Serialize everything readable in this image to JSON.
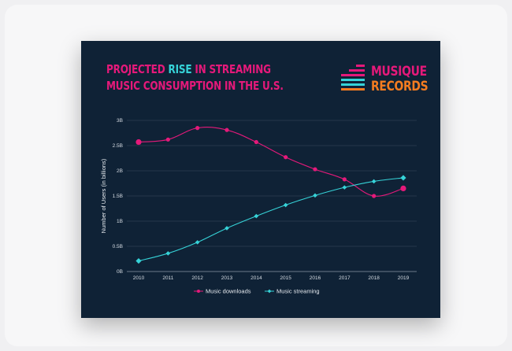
{
  "header": {
    "title_part1": "PROJECTED ",
    "title_highlight": "RISE",
    "title_part2": " IN STREAMING",
    "title_line2": "MUSIC CONSUMPTION IN THE U.S."
  },
  "logo": {
    "line1": "MUSIQUE",
    "line2": "RECORDS",
    "icon": "equalizer-bars-icon",
    "colors": [
      "#e5197a",
      "#36d3d8",
      "#f47c20"
    ]
  },
  "colors": {
    "background": "#0f2236",
    "downloads": "#e5197a",
    "streaming": "#36d3d8"
  },
  "chart_data": {
    "type": "line",
    "x": [
      "2010",
      "2011",
      "2012",
      "2013",
      "2014",
      "2015",
      "2016",
      "2017",
      "2018",
      "2019"
    ],
    "ylabel": "Number of Users (in billions)",
    "ylim": [
      0,
      3
    ],
    "yticks": [
      0,
      0.5,
      1,
      1.5,
      2,
      2.5,
      3
    ],
    "ytick_labels": [
      "0B",
      "0.5B",
      "1B",
      "1.5B",
      "2B",
      "2.5B",
      "3B"
    ],
    "grid": true,
    "legend_position": "bottom",
    "series": [
      {
        "name": "Music downloads",
        "color": "#e5197a",
        "marker": "circle",
        "values": [
          2.57,
          2.62,
          2.85,
          2.81,
          2.57,
          2.27,
          2.03,
          1.83,
          1.5,
          1.65
        ]
      },
      {
        "name": "Music streaming",
        "color": "#36d3d8",
        "marker": "diamond",
        "values": [
          0.21,
          0.36,
          0.58,
          0.86,
          1.1,
          1.32,
          1.51,
          1.67,
          1.79,
          1.86
        ]
      }
    ]
  }
}
